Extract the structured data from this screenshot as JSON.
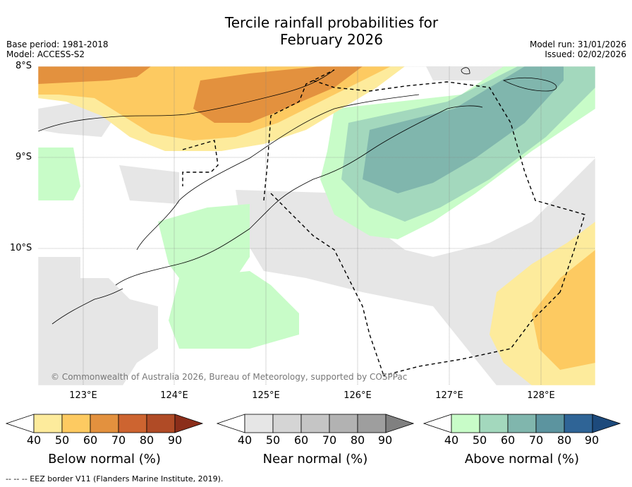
{
  "title_line1": "Tercile rainfall probabilities for",
  "title_line2": "February 2026",
  "meta_left": [
    "Base period: 1981-2018",
    "Model: ACCESS-S2"
  ],
  "meta_right": [
    "Model run: 31/01/2026",
    "Issued: 02/02/2026"
  ],
  "lat_labels": [
    "8°S",
    "9°S",
    "10°S"
  ],
  "lon_labels": [
    "123°E",
    "124°E",
    "125°E",
    "126°E",
    "127°E",
    "128°E"
  ],
  "copyright": "© Commonwealth of Australia 2026, Bureau of Meteorology, supported by COSPPac",
  "legend": {
    "below": {
      "title": "Below normal (%)",
      "ticks": [
        "40",
        "50",
        "60",
        "70",
        "80",
        "90"
      ],
      "colors": [
        "#ffffff",
        "#fdeb9c",
        "#fdca61",
        "#e3913e",
        "#cd6430",
        "#b04b26",
        "#8b2e1a"
      ]
    },
    "near": {
      "title": "Near normal (%)",
      "ticks": [
        "40",
        "50",
        "60",
        "70",
        "80",
        "90"
      ],
      "colors": [
        "#ffffff",
        "#e6e6e6",
        "#d5d5d5",
        "#c5c5c5",
        "#b2b2b2",
        "#9e9e9e",
        "#808080"
      ]
    },
    "above": {
      "title": "Above normal (%)",
      "ticks": [
        "40",
        "50",
        "60",
        "70",
        "80",
        "90"
      ],
      "colors": [
        "#ffffff",
        "#c8fcc8",
        "#a3d8bd",
        "#80b6ad",
        "#5c949f",
        "#2f6496",
        "#1d4a7c"
      ]
    }
  },
  "footnote": "--  --  -- EEZ border V11 (Flanders Marine Institute, 2019)."
}
